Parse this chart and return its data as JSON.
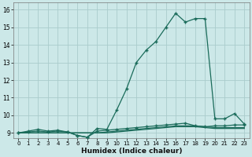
{
  "xlabel": "Humidex (Indice chaleur)",
  "bg_color": "#cce8e8",
  "grid_color": "#aacccc",
  "line_color": "#1a6b5a",
  "xlim": [
    -0.5,
    23.5
  ],
  "ylim": [
    8.7,
    16.4
  ],
  "xticks": [
    0,
    1,
    2,
    3,
    4,
    5,
    6,
    7,
    8,
    9,
    10,
    11,
    12,
    13,
    14,
    15,
    16,
    17,
    18,
    19,
    20,
    21,
    22,
    23
  ],
  "yticks": [
    9,
    10,
    11,
    12,
    13,
    14,
    15,
    16
  ],
  "series_main_x": [
    0,
    1,
    2,
    3,
    4,
    5,
    6,
    7,
    8,
    9,
    10,
    11,
    12,
    13,
    14,
    15,
    16,
    17,
    18,
    19,
    20,
    21,
    22,
    23
  ],
  "series_main_y": [
    9.0,
    9.1,
    9.2,
    9.1,
    9.15,
    9.05,
    8.85,
    8.75,
    9.25,
    9.2,
    10.3,
    11.5,
    13.0,
    13.7,
    14.2,
    15.0,
    15.8,
    15.3,
    15.5,
    15.5,
    9.8,
    9.8,
    10.1,
    9.5
  ],
  "series_flat1_x": [
    0,
    1,
    2,
    3,
    4,
    5,
    6,
    7,
    8,
    9,
    10,
    11,
    12,
    13,
    14,
    15,
    16,
    17,
    18,
    19,
    20,
    21,
    22,
    23
  ],
  "series_flat1_y": [
    9.0,
    9.05,
    9.1,
    9.05,
    9.1,
    9.05,
    8.85,
    8.75,
    9.1,
    9.15,
    9.2,
    9.25,
    9.3,
    9.35,
    9.4,
    9.45,
    9.5,
    9.55,
    9.4,
    9.35,
    9.4,
    9.4,
    9.45,
    9.45
  ],
  "series_flat2_x": [
    0,
    1,
    2,
    3,
    4,
    5,
    6,
    7,
    8,
    9,
    10,
    11,
    12,
    13,
    14,
    15,
    16,
    17,
    18,
    19,
    20,
    21,
    22,
    23
  ],
  "series_flat2_y": [
    9.0,
    9.0,
    9.0,
    9.0,
    9.0,
    9.0,
    9.0,
    9.0,
    9.0,
    9.05,
    9.1,
    9.15,
    9.2,
    9.25,
    9.3,
    9.35,
    9.4,
    9.4,
    9.4,
    9.35,
    9.3,
    9.3,
    9.3,
    9.3
  ],
  "series_flat3_x": [
    0,
    1,
    2,
    3,
    4,
    5,
    6,
    7,
    8,
    9,
    10,
    11,
    12,
    13,
    14,
    15,
    16,
    17,
    18,
    19,
    20,
    21,
    22,
    23
  ],
  "series_flat3_y": [
    9.0,
    9.0,
    9.0,
    9.0,
    9.0,
    9.0,
    9.0,
    9.0,
    9.0,
    9.0,
    9.05,
    9.1,
    9.15,
    9.2,
    9.25,
    9.3,
    9.35,
    9.35,
    9.35,
    9.3,
    9.25,
    9.25,
    9.25,
    9.25
  ],
  "marker_size": 2.5,
  "linewidth": 0.9,
  "tick_fontsize": 5.5,
  "xlabel_fontsize": 6.5
}
